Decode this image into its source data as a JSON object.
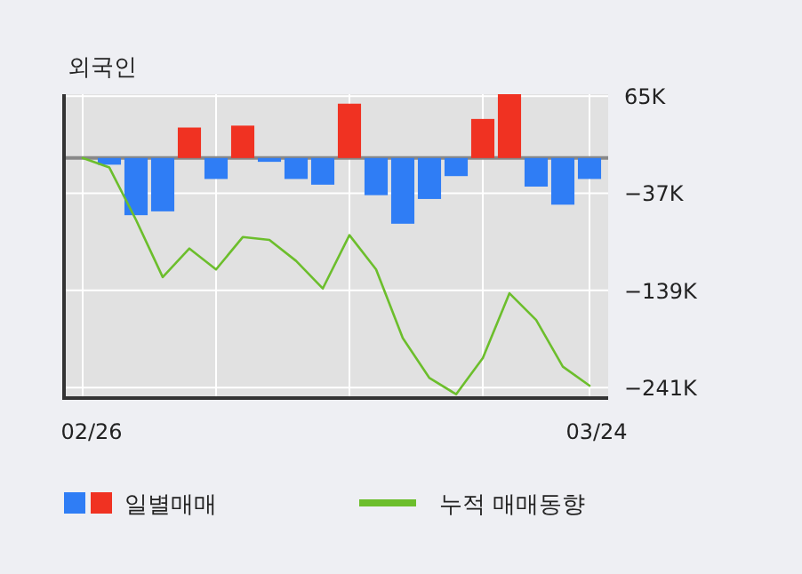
{
  "chart_data": {
    "type": "bar",
    "title": "외국인",
    "categories": [
      "02/26",
      null,
      null,
      null,
      null,
      null,
      null,
      null,
      null,
      null,
      null,
      null,
      null,
      null,
      null,
      null,
      null,
      null,
      null,
      "03/24"
    ],
    "series": [
      {
        "name": "일별매매",
        "colors": [
          "#2f7df5",
          "#2f7df5",
          "#2f7df5",
          "#2f7df5",
          "#f03222",
          "#2f7df5",
          "#f03222",
          "#2f7df5",
          "#2f7df5",
          "#2f7df5",
          "#f03222",
          "#2f7df5",
          "#2f7df5",
          "#2f7df5",
          "#2f7df5",
          "#f03222",
          "#f03222",
          "#2f7df5",
          "#2f7df5",
          "#2f7df5"
        ],
        "values": [
          null,
          -7,
          -60,
          -56,
          32,
          -22,
          34,
          -4,
          -22,
          -28,
          57,
          -39,
          -69,
          -43,
          -19,
          41,
          67,
          -30,
          -49,
          -22
        ]
      },
      {
        "name": "누적 매매동향",
        "type": "line",
        "color": "#6cbe2c",
        "values": [
          0,
          -10,
          -65,
          -125,
          -95,
          -117,
          -83,
          -86,
          -108,
          -137,
          -81,
          -117,
          -189,
          -231,
          -248,
          -210,
          -142,
          -170,
          -219,
          -239
        ]
      }
    ],
    "ylim": [
      -252,
      67
    ],
    "yticks": [
      {
        "value": 65,
        "label": "65K"
      },
      {
        "value": -37,
        "label": "−37K"
      },
      {
        "value": -139,
        "label": "−139K"
      },
      {
        "value": -241,
        "label": "−241K"
      }
    ],
    "grid": true,
    "legend": "bottom"
  }
}
